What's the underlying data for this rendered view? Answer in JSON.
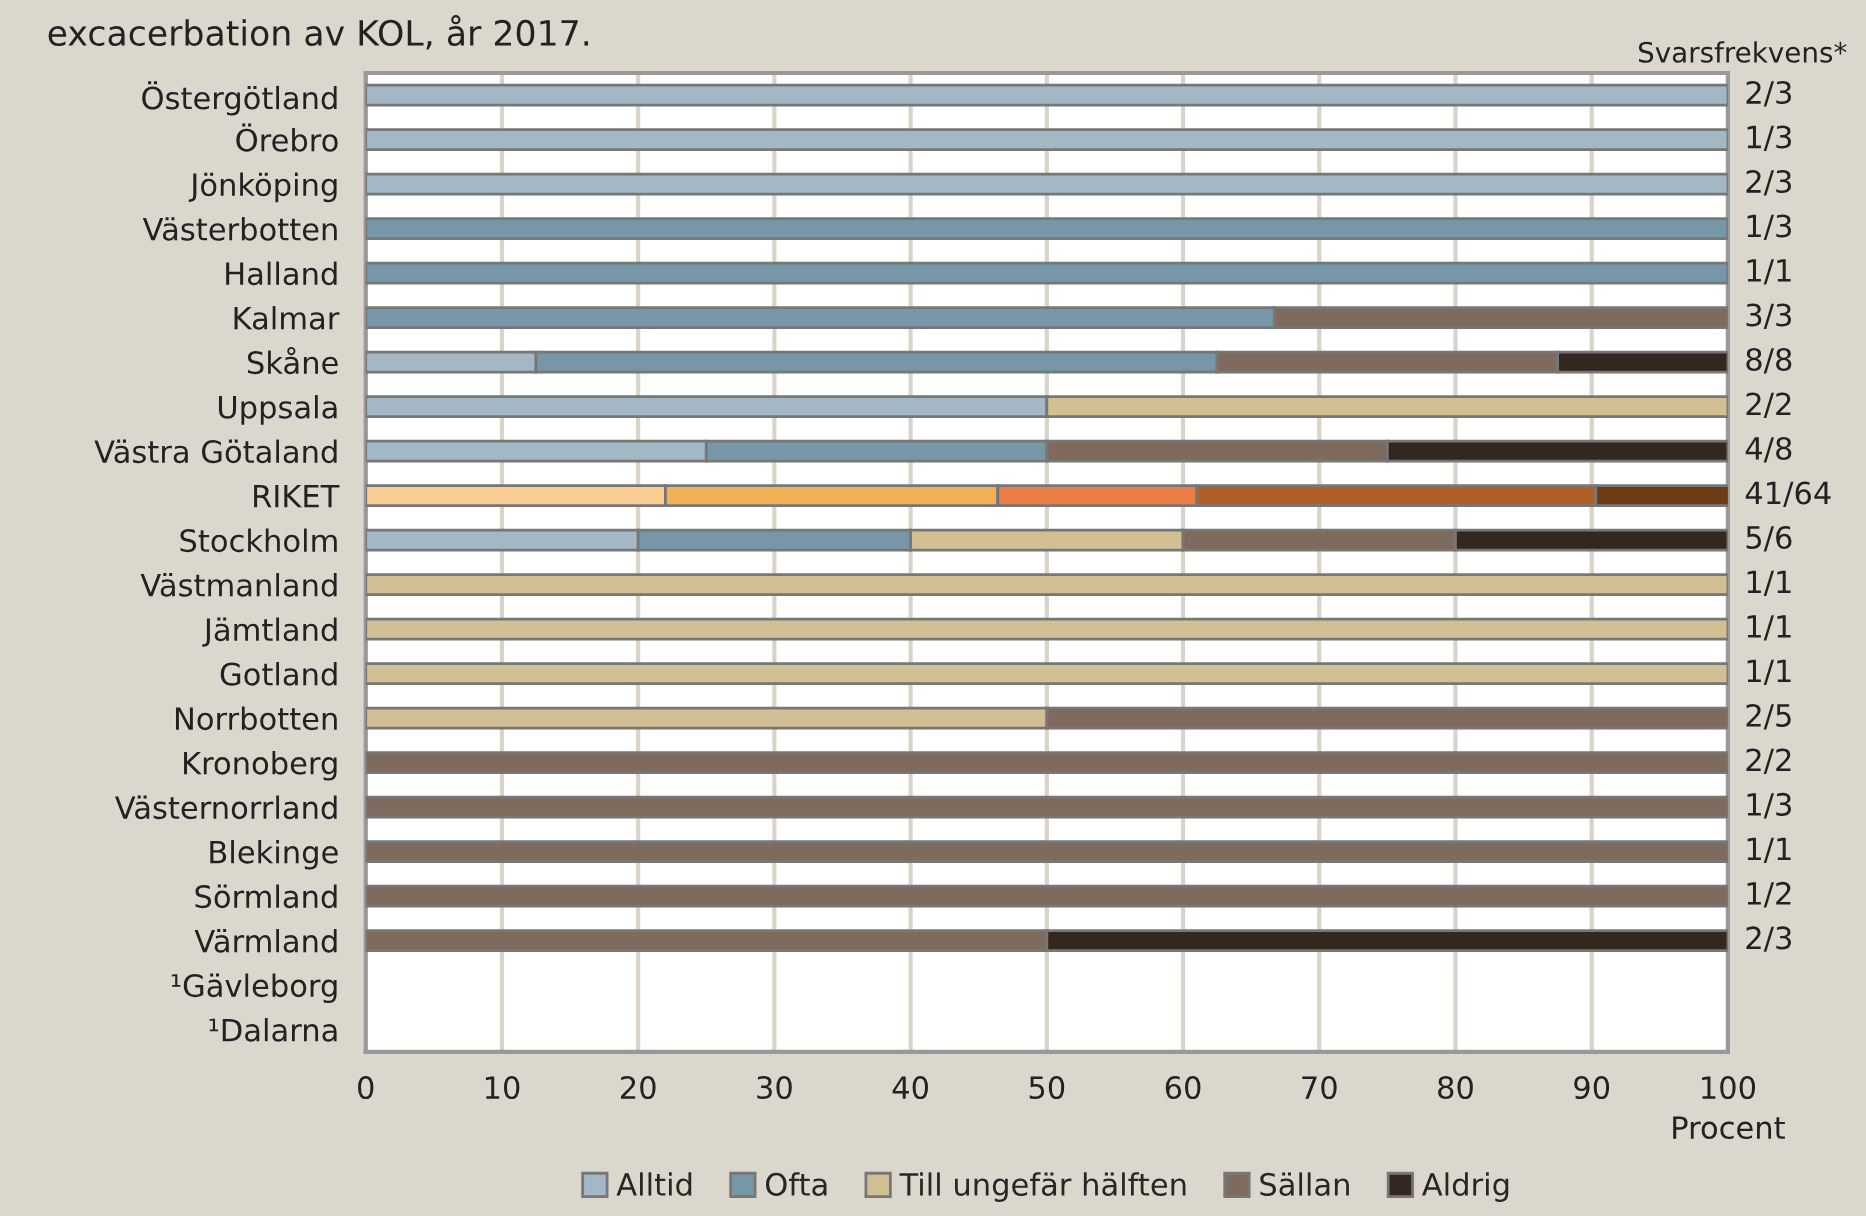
{
  "chart_data": {
    "type": "bar",
    "orientation": "horizontal",
    "stacked": true,
    "title": "excacerbation av KOL, år 2017.",
    "xlabel": "Procent",
    "categories": [
      "Östergötland",
      "Örebro",
      "Jönköping",
      "Västerbotten",
      "Halland",
      "Kalmar",
      "Skåne",
      "Uppsala",
      "Västra Götaland",
      "RIKET",
      "Stockholm",
      "Västmanland",
      "Jämtland",
      "Gotland",
      "Norrbotten",
      "Kronoberg",
      "Västernorrland",
      "Blekinge",
      "Sörmland",
      "Värmland",
      "¹Gävleborg",
      "¹Dalarna"
    ],
    "series": [
      {
        "name": "Alltid",
        "color": "#a3b8c4",
        "colors": [
          "#a3b8c4",
          "#a3b8c4",
          "#a3b8c4",
          "#a3b8c4",
          "#a3b8c4",
          "#a3b8c4",
          "#a3b8c4",
          "#a3b8c4",
          "#a3b8c4",
          "#f8cc92",
          "#a3b8c4",
          "#a3b8c4",
          "#a3b8c4",
          "#a3b8c4",
          "#a3b8c4",
          "#a3b8c4",
          "#a3b8c4",
          "#a3b8c4",
          "#a3b8c4",
          "#a3b8c4",
          "#a3b8c4",
          "#a3b8c4"
        ],
        "values": [
          100,
          100,
          100,
          0,
          0,
          0,
          12.5,
          50,
          25,
          22.0,
          20,
          0,
          0,
          0,
          0,
          0,
          0,
          0,
          0,
          0,
          null,
          null
        ]
      },
      {
        "name": "Ofta",
        "color": "#7697a8",
        "colors": [
          "#7697a8",
          "#7697a8",
          "#7697a8",
          "#7697a8",
          "#7697a8",
          "#7697a8",
          "#7697a8",
          "#7697a8",
          "#7697a8",
          "#f2b057",
          "#7697a8",
          "#7697a8",
          "#7697a8",
          "#7697a8",
          "#7697a8",
          "#7697a8",
          "#7697a8",
          "#7697a8",
          "#7697a8",
          "#7697a8",
          "#7697a8",
          "#7697a8"
        ],
        "values": [
          0,
          0,
          0,
          100,
          100,
          66.7,
          50,
          0,
          25,
          24.4,
          20,
          0,
          0,
          0,
          0,
          0,
          0,
          0,
          0,
          0,
          null,
          null
        ]
      },
      {
        "name": "Till ungefär hälften",
        "color": "#d3bf94",
        "colors": [
          "#d3bf94",
          "#d3bf94",
          "#d3bf94",
          "#d3bf94",
          "#d3bf94",
          "#d3bf94",
          "#d3bf94",
          "#d3bf94",
          "#d3bf94",
          "#ea7d43",
          "#d3bf94",
          "#d3bf94",
          "#d3bf94",
          "#d3bf94",
          "#d3bf94",
          "#d3bf94",
          "#d3bf94",
          "#d3bf94",
          "#d3bf94",
          "#d3bf94",
          "#d3bf94",
          "#d3bf94"
        ],
        "values": [
          0,
          0,
          0,
          0,
          0,
          0,
          0,
          50,
          0,
          14.6,
          20,
          100,
          100,
          100,
          50,
          0,
          0,
          0,
          0,
          0,
          null,
          null
        ]
      },
      {
        "name": "Sällan",
        "color": "#7e6b5e",
        "colors": [
          "#7e6b5e",
          "#7e6b5e",
          "#7e6b5e",
          "#7e6b5e",
          "#7e6b5e",
          "#7e6b5e",
          "#7e6b5e",
          "#7e6b5e",
          "#7e6b5e",
          "#b05f28",
          "#7e6b5e",
          "#7e6b5e",
          "#7e6b5e",
          "#7e6b5e",
          "#7e6b5e",
          "#7e6b5e",
          "#7e6b5e",
          "#7e6b5e",
          "#7e6b5e",
          "#7e6b5e",
          "#7e6b5e",
          "#7e6b5e"
        ],
        "values": [
          0,
          0,
          0,
          0,
          0,
          33.3,
          25,
          0,
          25,
          29.3,
          20,
          0,
          0,
          0,
          50,
          100,
          100,
          100,
          100,
          50,
          null,
          null
        ]
      },
      {
        "name": "Aldrig",
        "color": "#33281f",
        "colors": [
          "#33281f",
          "#33281f",
          "#33281f",
          "#33281f",
          "#33281f",
          "#33281f",
          "#33281f",
          "#33281f",
          "#33281f",
          "#6e3c14",
          "#33281f",
          "#33281f",
          "#33281f",
          "#33281f",
          "#33281f",
          "#33281f",
          "#33281f",
          "#33281f",
          "#33281f",
          "#33281f",
          "#33281f",
          "#33281f"
        ],
        "values": [
          0,
          0,
          0,
          0,
          0,
          0,
          12.5,
          0,
          25,
          9.8,
          20,
          0,
          0,
          0,
          0,
          0,
          0,
          0,
          0,
          50,
          null,
          null
        ]
      }
    ],
    "xlim": [
      0,
      100
    ],
    "xticks": [
      0,
      10,
      20,
      30,
      40,
      50,
      60,
      70,
      80,
      90,
      100
    ],
    "grid": "x",
    "legend": "bottom",
    "annotations": [
      "Svarsfrekvens*",
      "2/3",
      "1/3",
      "2/3",
      "1/3",
      "1/1",
      "3/3",
      "8/8",
      "2/2",
      "4/8",
      "41/64",
      "5/6",
      "1/1",
      "1/1",
      "1/1",
      "2/5",
      "2/2",
      "1/3",
      "1/1",
      "1/2",
      "2/3"
    ]
  }
}
